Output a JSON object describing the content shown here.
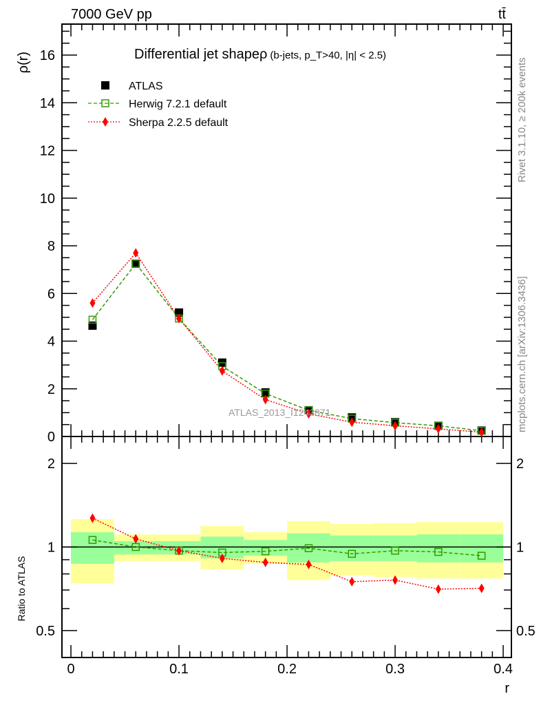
{
  "header": {
    "energy_label": "7000 GeV pp",
    "process_label": "tt̄"
  },
  "side_labels": {
    "rivet": "Rivet 3.1.10, ≥ 200k events",
    "mcplots": "mcplots.cern.ch [arXiv:1306.3436]"
  },
  "watermark": "ATLAS_2013_I1243871",
  "colors": {
    "atlas": "#000000",
    "herwig": "#339900",
    "sherpa": "#ff0000",
    "band_inner": "#99ff99",
    "band_outer": "#ffff99"
  },
  "chart_data": [
    {
      "type": "line",
      "title": "Differential jet shapeρ",
      "subtitle": "(b-jets, p_T>40, |η| < 2.5)",
      "ylabel": "ρ(r)",
      "xlabel": "r",
      "xlim": [
        -0.0083,
        0.4076
      ],
      "ylim": [
        0,
        17.3
      ],
      "yticks": [
        0,
        2,
        4,
        6,
        8,
        10,
        12,
        14,
        16
      ],
      "ytick_labels": [
        "0",
        "2",
        "4",
        "6",
        "8",
        "10",
        "12",
        "14",
        "16"
      ],
      "legend_position": "top-left",
      "x": [
        0.02,
        0.06,
        0.1,
        0.14,
        0.18,
        0.22,
        0.26,
        0.3,
        0.34,
        0.38
      ],
      "series": [
        {
          "name": "ATLAS",
          "marker": "filled-square",
          "values": [
            4.65,
            7.25,
            5.2,
            3.1,
            1.85,
            1.1,
            0.8,
            0.6,
            0.45,
            0.25
          ]
        },
        {
          "name": "Herwig 7.2.1 default",
          "marker": "open-square",
          "line": "dashed",
          "values": [
            4.9,
            7.25,
            4.95,
            2.95,
            1.8,
            1.1,
            0.75,
            0.58,
            0.45,
            0.24
          ]
        },
        {
          "name": "Sherpa 2.2.5 default",
          "marker": "diamond",
          "line": "dotted",
          "values": [
            5.6,
            7.7,
            4.95,
            2.75,
            1.55,
            0.95,
            0.6,
            0.45,
            0.32,
            0.18
          ]
        }
      ]
    },
    {
      "type": "line",
      "ylabel": "Ratio to ATLAS",
      "xlabel": "r",
      "yscale": "log",
      "xlim": [
        -0.0083,
        0.4076
      ],
      "ylim": [
        0.4,
        2.5
      ],
      "yticks": [
        0.5,
        1,
        2
      ],
      "ytick_labels": [
        "0.5",
        "1",
        "2"
      ],
      "xticks": [
        0,
        0.1,
        0.2,
        0.3,
        0.4
      ],
      "xtick_labels": [
        "0",
        "0.1",
        "0.2",
        "0.3",
        "0.4"
      ],
      "bin_edges": [
        0,
        0.04,
        0.08,
        0.12,
        0.16,
        0.2,
        0.24,
        0.28,
        0.32,
        0.36,
        0.4
      ],
      "band_inner": {
        "low": [
          0.87,
          0.94,
          0.94,
          0.91,
          0.93,
          0.88,
          0.89,
          0.89,
          0.88,
          0.88
        ],
        "high": [
          1.13,
          1.05,
          1.05,
          1.09,
          1.06,
          1.12,
          1.1,
          1.1,
          1.11,
          1.11
        ]
      },
      "band_outer": {
        "low": [
          0.74,
          0.89,
          0.89,
          0.83,
          0.87,
          0.76,
          0.79,
          0.78,
          0.77,
          0.77
        ],
        "high": [
          1.26,
          1.11,
          1.11,
          1.19,
          1.13,
          1.24,
          1.21,
          1.22,
          1.23,
          1.23
        ]
      },
      "x": [
        0.02,
        0.06,
        0.1,
        0.14,
        0.18,
        0.22,
        0.26,
        0.3,
        0.34,
        0.38
      ],
      "series": [
        {
          "name": "Herwig 7.2.1 default",
          "values": [
            1.06,
            1.0,
            0.97,
            0.955,
            0.965,
            0.99,
            0.945,
            0.97,
            0.96,
            0.93
          ]
        },
        {
          "name": "Sherpa 2.2.5 default",
          "values": [
            1.27,
            1.07,
            0.97,
            0.91,
            0.88,
            0.865,
            0.75,
            0.76,
            0.705,
            0.71
          ]
        }
      ]
    }
  ]
}
